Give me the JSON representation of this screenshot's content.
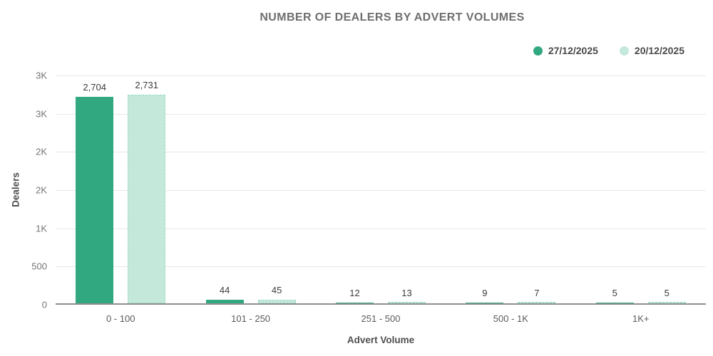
{
  "chart_data": {
    "type": "bar",
    "title": "NUMBER OF DEALERS BY ADVERT VOLUMES",
    "xlabel": "Advert Volume",
    "ylabel": "Dealers",
    "categories": [
      "0 - 100",
      "101 - 250",
      "251 - 500",
      "500 - 1K",
      "1K+"
    ],
    "series": [
      {
        "name": "27/12/2025",
        "color": "#32a881",
        "values": [
          2704,
          44,
          12,
          9,
          5
        ],
        "value_labels": [
          "2,704",
          "44",
          "12",
          "9",
          "5"
        ]
      },
      {
        "name": "20/12/2025",
        "color": "#c4e8da",
        "border_color": "#9edcc7",
        "border_style": "dashed",
        "values": [
          2731,
          45,
          13,
          7,
          5
        ],
        "value_labels": [
          "2,731",
          "45",
          "13",
          "7",
          "5"
        ]
      }
    ],
    "ylim": [
      0,
      3000
    ],
    "yticks": [
      {
        "value": 0,
        "label": "0"
      },
      {
        "value": 500,
        "label": "500"
      },
      {
        "value": 1000,
        "label": "1K"
      },
      {
        "value": 1500,
        "label": "2K"
      },
      {
        "value": 2000,
        "label": "2K"
      },
      {
        "value": 2500,
        "label": "3K"
      },
      {
        "value": 3000,
        "label": "3K"
      }
    ],
    "grid": true,
    "legend_position": "top-right",
    "background_color": "#ffffff",
    "baseline_color": "#8f8f8f",
    "gridline_color": "#e8e8e8"
  }
}
